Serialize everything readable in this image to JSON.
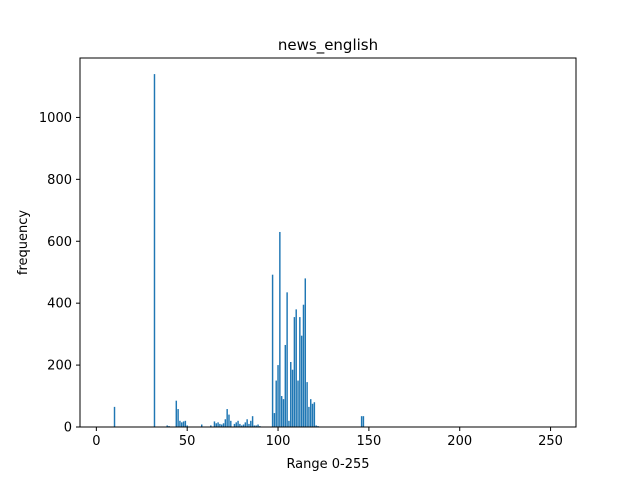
{
  "chart_data": {
    "type": "bar",
    "title": "news_english",
    "xlabel": "Range 0-255",
    "ylabel": "frequency",
    "xlim": [
      -9,
      264
    ],
    "ylim": [
      0,
      1192
    ],
    "xticks": [
      0,
      50,
      100,
      150,
      200,
      250
    ],
    "yticks": [
      0,
      200,
      400,
      600,
      800,
      1000
    ],
    "grid": false,
    "bar_color": "#1f77b4",
    "x": [
      10,
      32,
      39,
      40,
      44,
      45,
      46,
      47,
      48,
      49,
      50,
      58,
      63,
      65,
      66,
      67,
      68,
      69,
      70,
      71,
      72,
      73,
      74,
      76,
      77,
      78,
      79,
      80,
      81,
      82,
      83,
      84,
      85,
      86,
      87,
      88,
      89,
      90,
      97,
      98,
      99,
      100,
      101,
      102,
      103,
      104,
      105,
      106,
      107,
      108,
      109,
      110,
      111,
      112,
      113,
      114,
      115,
      116,
      117,
      118,
      119,
      120,
      121,
      122,
      146,
      147
    ],
    "values": [
      65,
      1140,
      5,
      3,
      85,
      58,
      20,
      15,
      18,
      20,
      5,
      8,
      5,
      18,
      12,
      15,
      10,
      8,
      12,
      25,
      58,
      40,
      20,
      10,
      15,
      20,
      10,
      5,
      8,
      15,
      25,
      10,
      20,
      35,
      5,
      5,
      8,
      3,
      492,
      45,
      150,
      200,
      630,
      100,
      90,
      265,
      435,
      20,
      210,
      185,
      355,
      380,
      150,
      355,
      295,
      395,
      480,
      145,
      65,
      90,
      75,
      80,
      5,
      3,
      35,
      35
    ]
  }
}
